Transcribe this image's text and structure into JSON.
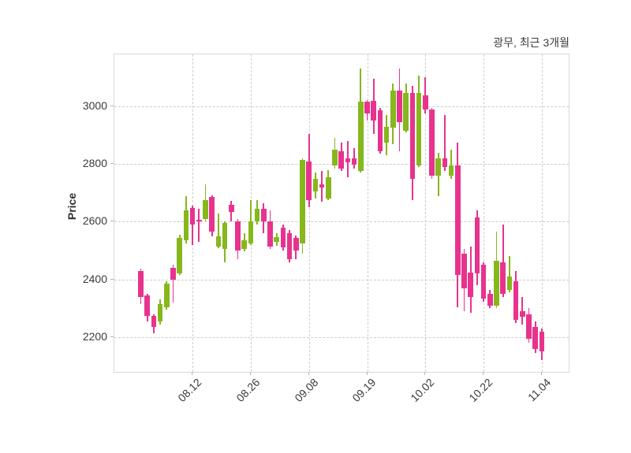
{
  "title": "광무, 최근 3개월",
  "ylabel": "Price",
  "colors": {
    "up": "#86b71c",
    "down": "#e7338e",
    "grid": "#cdcdcd",
    "tick_text": "#3a3a3a",
    "title_text": "#3c3c3c",
    "spine": "#d8d8d8",
    "background": "#ffffff"
  },
  "chart_data": {
    "type": "candlestick",
    "title": "광무, 최근 3개월",
    "ylabel": "Price",
    "ylim": [
      2080,
      3180
    ],
    "y_ticks": [
      2200,
      2400,
      2600,
      2800,
      3000
    ],
    "x_ticks": [
      {
        "index": 8,
        "label": "08.12"
      },
      {
        "index": 17,
        "label": "08.26"
      },
      {
        "index": 26,
        "label": "09.08"
      },
      {
        "index": 35,
        "label": "09.19"
      },
      {
        "index": 44,
        "label": "10.02"
      },
      {
        "index": 53,
        "label": "10.22"
      },
      {
        "index": 62,
        "label": "11.04"
      }
    ],
    "grid": "dashed",
    "legend": null,
    "candles_format": [
      "open",
      "high",
      "low",
      "close"
    ],
    "candles": [
      [
        2430,
        2438,
        2315,
        2340
      ],
      [
        2345,
        2350,
        2255,
        2275
      ],
      [
        2275,
        2280,
        2215,
        2235
      ],
      [
        2255,
        2330,
        2245,
        2315
      ],
      [
        2305,
        2395,
        2295,
        2385
      ],
      [
        2440,
        2450,
        2320,
        2400
      ],
      [
        2420,
        2555,
        2415,
        2545
      ],
      [
        2535,
        2690,
        2525,
        2640
      ],
      [
        2648,
        2655,
        2520,
        2590
      ],
      [
        2608,
        2645,
        2530,
        2600
      ],
      [
        2610,
        2730,
        2600,
        2675
      ],
      [
        2685,
        2692,
        2550,
        2565
      ],
      [
        2515,
        2630,
        2508,
        2550
      ],
      [
        2505,
        2600,
        2460,
        2595
      ],
      [
        2660,
        2672,
        2600,
        2635
      ],
      [
        2600,
        2610,
        2470,
        2500
      ],
      [
        2505,
        2560,
        2498,
        2535
      ],
      [
        2525,
        2675,
        2520,
        2600
      ],
      [
        2600,
        2675,
        2590,
        2645
      ],
      [
        2645,
        2665,
        2560,
        2600
      ],
      [
        2600,
        2640,
        2505,
        2515
      ],
      [
        2530,
        2560,
        2518,
        2548
      ],
      [
        2580,
        2590,
        2500,
        2510
      ],
      [
        2560,
        2570,
        2460,
        2470
      ],
      [
        2545,
        2552,
        2470,
        2500
      ],
      [
        2525,
        2820,
        2490,
        2815
      ],
      [
        2810,
        2905,
        2650,
        2675
      ],
      [
        2705,
        2770,
        2680,
        2750
      ],
      [
        2730,
        2775,
        2670,
        2720
      ],
      [
        2680,
        2780,
        2675,
        2755
      ],
      [
        2795,
        2890,
        2785,
        2850
      ],
      [
        2845,
        2875,
        2775,
        2785
      ],
      [
        2820,
        2880,
        2755,
        2805
      ],
      [
        2820,
        2855,
        2785,
        2798
      ],
      [
        2775,
        3130,
        2770,
        3015
      ],
      [
        3015,
        3022,
        2950,
        2975
      ],
      [
        3020,
        3095,
        2905,
        2950
      ],
      [
        2985,
        2995,
        2835,
        2845
      ],
      [
        2875,
        2970,
        2830,
        2930
      ],
      [
        2925,
        3080,
        2870,
        3055
      ],
      [
        3055,
        3130,
        2845,
        2945
      ],
      [
        2915,
        3080,
        2910,
        3045
      ],
      [
        3045,
        3070,
        2675,
        2750
      ],
      [
        2795,
        3105,
        2790,
        3045
      ],
      [
        3038,
        3100,
        2975,
        2990
      ],
      [
        2990,
        2995,
        2750,
        2760
      ],
      [
        2760,
        2840,
        2690,
        2820
      ],
      [
        2820,
        2970,
        2775,
        2790
      ],
      [
        2760,
        2850,
        2750,
        2795
      ],
      [
        2795,
        2875,
        2305,
        2415
      ],
      [
        2490,
        2505,
        2290,
        2370
      ],
      [
        2425,
        2515,
        2285,
        2340
      ],
      [
        2615,
        2640,
        2380,
        2420
      ],
      [
        2450,
        2460,
        2322,
        2335
      ],
      [
        2350,
        2365,
        2300,
        2310
      ],
      [
        2310,
        2565,
        2300,
        2465
      ],
      [
        2460,
        2590,
        2340,
        2350
      ],
      [
        2365,
        2480,
        2355,
        2410
      ],
      [
        2395,
        2430,
        2250,
        2260
      ],
      [
        2290,
        2340,
        2245,
        2270
      ],
      [
        2280,
        2300,
        2180,
        2195
      ],
      [
        2235,
        2255,
        2145,
        2160
      ],
      [
        2220,
        2230,
        2120,
        2150
      ]
    ]
  }
}
